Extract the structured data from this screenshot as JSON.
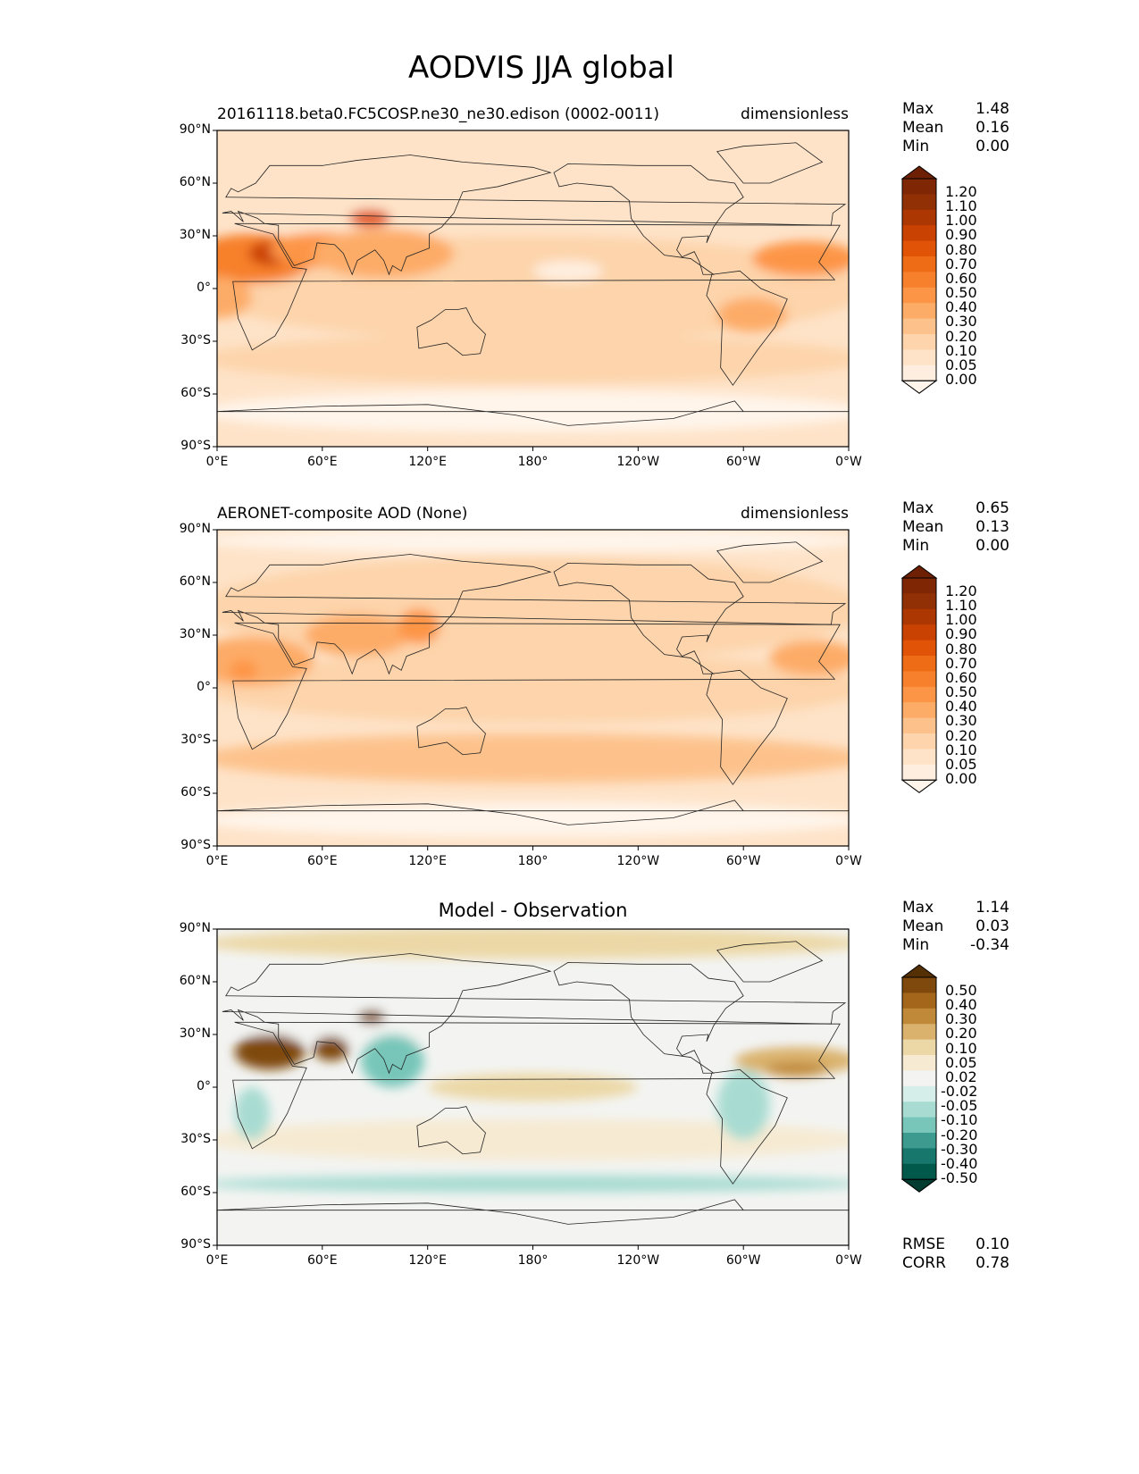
{
  "title": "AODVIS JJA global",
  "x_ticks": [
    "0°E",
    "60°E",
    "120°E",
    "180°",
    "120°W",
    "60°W",
    "0°W"
  ],
  "y_ticks": [
    "90°N",
    "60°N",
    "30°N",
    "0°",
    "30°S",
    "60°S",
    "90°S"
  ],
  "panels": [
    {
      "left_title": "20161118.beta0.FC5COSP.ne30_ne30.edison (0002-0011)",
      "center_title": "",
      "right_title": "dimensionless",
      "stats": [
        {
          "label": "Max",
          "value": "1.48"
        },
        {
          "label": "Mean",
          "value": "0.16"
        },
        {
          "label": "Min",
          "value": "0.00"
        }
      ],
      "colorbar_levels": [
        "1.20",
        "1.10",
        "1.00",
        "0.90",
        "0.80",
        "0.70",
        "0.60",
        "0.50",
        "0.40",
        "0.30",
        "0.20",
        "0.10",
        "0.05",
        "0.00"
      ],
      "colors": [
        "#fff5eb",
        "#feeedf",
        "#fee3c8",
        "#fdd4ab",
        "#fdc28c",
        "#fdac67",
        "#fd9546",
        "#f7802c",
        "#ee6c16",
        "#e15307",
        "#ca4202",
        "#ac3703",
        "#913004",
        "#7f2704",
        "#6e2004"
      ]
    },
    {
      "left_title": "AERONET-composite AOD (None)",
      "center_title": "",
      "right_title": "dimensionless",
      "stats": [
        {
          "label": "Max",
          "value": "0.65"
        },
        {
          "label": "Mean",
          "value": "0.13"
        },
        {
          "label": "Min",
          "value": "0.00"
        }
      ],
      "colorbar_levels": [
        "1.20",
        "1.10",
        "1.00",
        "0.90",
        "0.80",
        "0.70",
        "0.60",
        "0.50",
        "0.40",
        "0.30",
        "0.20",
        "0.10",
        "0.05",
        "0.00"
      ],
      "colors": [
        "#fff5eb",
        "#feeedf",
        "#fee3c8",
        "#fdd4ab",
        "#fdc28c",
        "#fdac67",
        "#fd9546",
        "#f7802c",
        "#ee6c16",
        "#e15307",
        "#ca4202",
        "#ac3703",
        "#913004",
        "#7f2704",
        "#6e2004"
      ]
    },
    {
      "left_title": "",
      "center_title": "Model - Observation",
      "right_title": "",
      "stats": [
        {
          "label": "Max",
          "value": "1.14"
        },
        {
          "label": "Mean",
          "value": "0.03"
        },
        {
          "label": "Min",
          "value": "-0.34"
        }
      ],
      "colorbar_levels": [
        "0.50",
        "0.40",
        "0.30",
        "0.20",
        "0.10",
        "0.05",
        "0.02",
        "-0.02",
        "-0.05",
        "-0.10",
        "-0.20",
        "-0.30",
        "-0.40",
        "-0.50"
      ],
      "colors": [
        "#003c30",
        "#01594c",
        "#17776c",
        "#3c9a8f",
        "#77c6b9",
        "#a8dcd2",
        "#d6eeea",
        "#f3f4f2",
        "#f6ead2",
        "#ecd8a6",
        "#dab26d",
        "#c08839",
        "#a3661b",
        "#7f480c",
        "#553005"
      ],
      "footer": [
        {
          "label": "RMSE",
          "value": "0.10"
        },
        {
          "label": "CORR",
          "value": "0.78"
        }
      ]
    }
  ]
}
